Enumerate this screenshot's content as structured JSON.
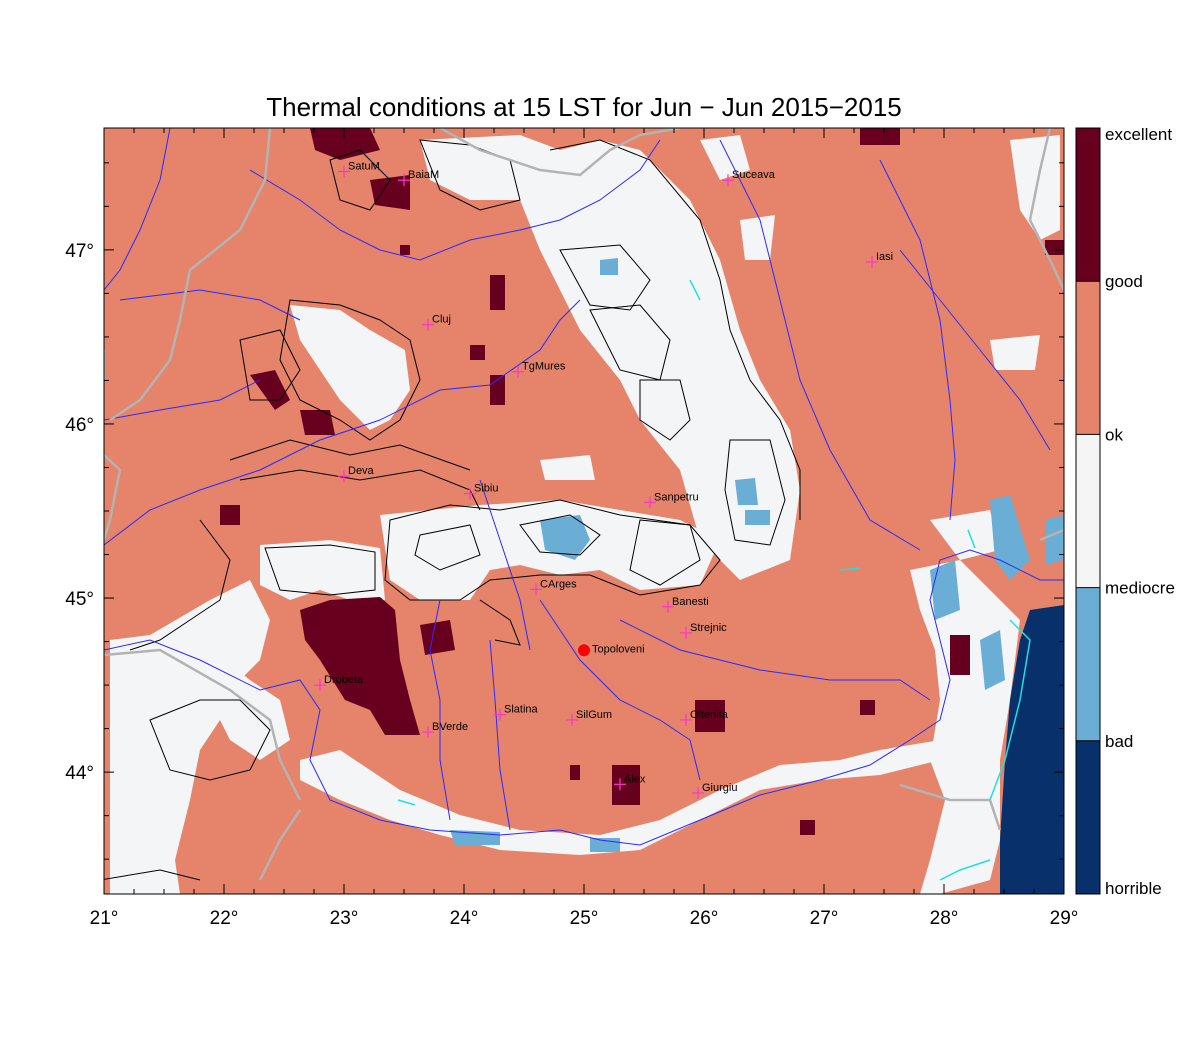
{
  "title": "Thermal conditions at 15 LST for Jun − Jun  2015−2015",
  "axes": {
    "x_ticks": [
      "21°",
      "22°",
      "23°",
      "24°",
      "25°",
      "26°",
      "27°",
      "28°",
      "29°"
    ],
    "y_ticks": [
      "47°",
      "46°",
      "45°",
      "44°"
    ],
    "lon_range": [
      21,
      29
    ],
    "lat_range": [
      43.3,
      47.7
    ]
  },
  "legend": {
    "labels": [
      "excellent",
      "good",
      "ok",
      "mediocre",
      "bad",
      "horrible"
    ],
    "colors": [
      "#67001f",
      "#e5846a",
      "#f5f5f5",
      "#6aaed6",
      "#08306b"
    ]
  },
  "cities": [
    {
      "name": "SatuM",
      "lon": 23.0,
      "lat": 47.45
    },
    {
      "name": "BaiaM",
      "lon": 23.5,
      "lat": 47.4
    },
    {
      "name": "Suceava",
      "lon": 26.2,
      "lat": 47.4
    },
    {
      "name": "Iasi",
      "lon": 27.4,
      "lat": 46.93
    },
    {
      "name": "Cluj",
      "lon": 23.7,
      "lat": 46.57
    },
    {
      "name": "TgMures",
      "lon": 24.45,
      "lat": 46.3
    },
    {
      "name": "Deva",
      "lon": 23.0,
      "lat": 45.7
    },
    {
      "name": "Sibiu",
      "lon": 24.05,
      "lat": 45.6
    },
    {
      "name": "Sanpetru",
      "lon": 25.55,
      "lat": 45.55
    },
    {
      "name": "CArges",
      "lon": 24.6,
      "lat": 45.05
    },
    {
      "name": "Banesti",
      "lon": 25.7,
      "lat": 44.95
    },
    {
      "name": "Strejnic",
      "lon": 25.85,
      "lat": 44.8
    },
    {
      "name": "Drobeta",
      "lon": 22.8,
      "lat": 44.5
    },
    {
      "name": "Slatina",
      "lon": 24.3,
      "lat": 44.33
    },
    {
      "name": "SilGum",
      "lon": 24.9,
      "lat": 44.3
    },
    {
      "name": "Oltenita",
      "lon": 25.85,
      "lat": 44.3
    },
    {
      "name": "BVerde",
      "lon": 23.7,
      "lat": 44.23
    },
    {
      "name": "Alex",
      "lon": 25.3,
      "lat": 43.93
    },
    {
      "name": "Giurgiu",
      "lon": 25.95,
      "lat": 43.88
    }
  ],
  "station": {
    "name": "Topoloveni",
    "lon": 25.0,
    "lat": 44.7
  }
}
